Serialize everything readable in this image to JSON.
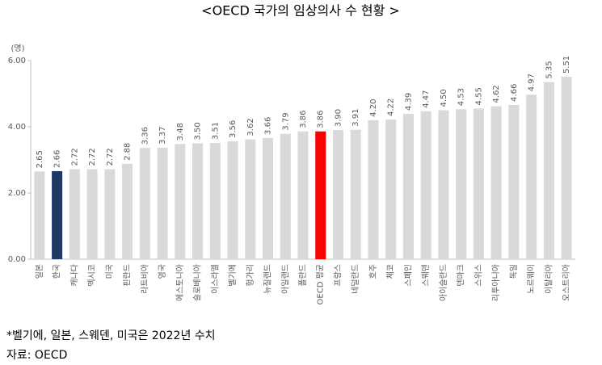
{
  "chart_data": {
    "type": "bar",
    "title": "<OECD 국가의 임상의사 수 현황 >",
    "y_label": "(명)",
    "categories": [
      "일본",
      "한국",
      "캐나다",
      "멕시코",
      "미국",
      "핀란드",
      "라트비아",
      "영국",
      "에스토니아",
      "슬로베니아",
      "이스라엘",
      "벨기에",
      "헝가리",
      "뉴질랜드",
      "아일랜드",
      "폴란드",
      "OECD 평균",
      "프랑스",
      "네덜란드",
      "호주",
      "체코",
      "스페인",
      "스웨덴",
      "아이슬란드",
      "덴마크",
      "스위스",
      "리투아니아",
      "독일",
      "노르웨이",
      "이탈리아",
      "오스트리아"
    ],
    "values": [
      2.65,
      2.66,
      2.72,
      2.72,
      2.72,
      2.88,
      3.36,
      3.37,
      3.48,
      3.5,
      3.51,
      3.56,
      3.62,
      3.66,
      3.79,
      3.86,
      3.86,
      3.9,
      3.91,
      4.2,
      4.22,
      4.39,
      4.47,
      4.5,
      4.53,
      4.55,
      4.62,
      4.66,
      4.97,
      5.35,
      5.51
    ],
    "value_labels": [
      "2.65",
      "2.66",
      "2.72",
      "2.72",
      "2.72",
      "2.88",
      "3.36",
      "3.37",
      "3.48",
      "3.50",
      "3.51",
      "3.56",
      "3.62",
      "3.66",
      "3.79",
      "3.86",
      "3.86",
      "3.90",
      "3.91",
      "4.20",
      "4.22",
      "4.39",
      "4.47",
      "4.50",
      "4.53",
      "4.55",
      "4.62",
      "4.66",
      "4.97",
      "5.35",
      "5.51"
    ],
    "colors": [
      "#d9d9d9",
      "#1f3864",
      "#d9d9d9",
      "#d9d9d9",
      "#d9d9d9",
      "#d9d9d9",
      "#d9d9d9",
      "#d9d9d9",
      "#d9d9d9",
      "#d9d9d9",
      "#d9d9d9",
      "#d9d9d9",
      "#d9d9d9",
      "#d9d9d9",
      "#d9d9d9",
      "#d9d9d9",
      "#ff0000",
      "#d9d9d9",
      "#d9d9d9",
      "#d9d9d9",
      "#d9d9d9",
      "#d9d9d9",
      "#d9d9d9",
      "#d9d9d9",
      "#d9d9d9",
      "#d9d9d9",
      "#d9d9d9",
      "#d9d9d9",
      "#d9d9d9",
      "#d9d9d9",
      "#d9d9d9"
    ],
    "ylim": [
      0,
      6
    ],
    "yticks": [
      {
        "value": 0,
        "label": "0.00"
      },
      {
        "value": 2,
        "label": "2.00"
      },
      {
        "value": 4,
        "label": "4.00"
      },
      {
        "value": 6,
        "label": "6.00"
      }
    ],
    "grid": false,
    "notes": [
      "*벨기에, 일본, 스웨덴, 미국은 2022년 수치",
      "자료: OECD"
    ]
  }
}
